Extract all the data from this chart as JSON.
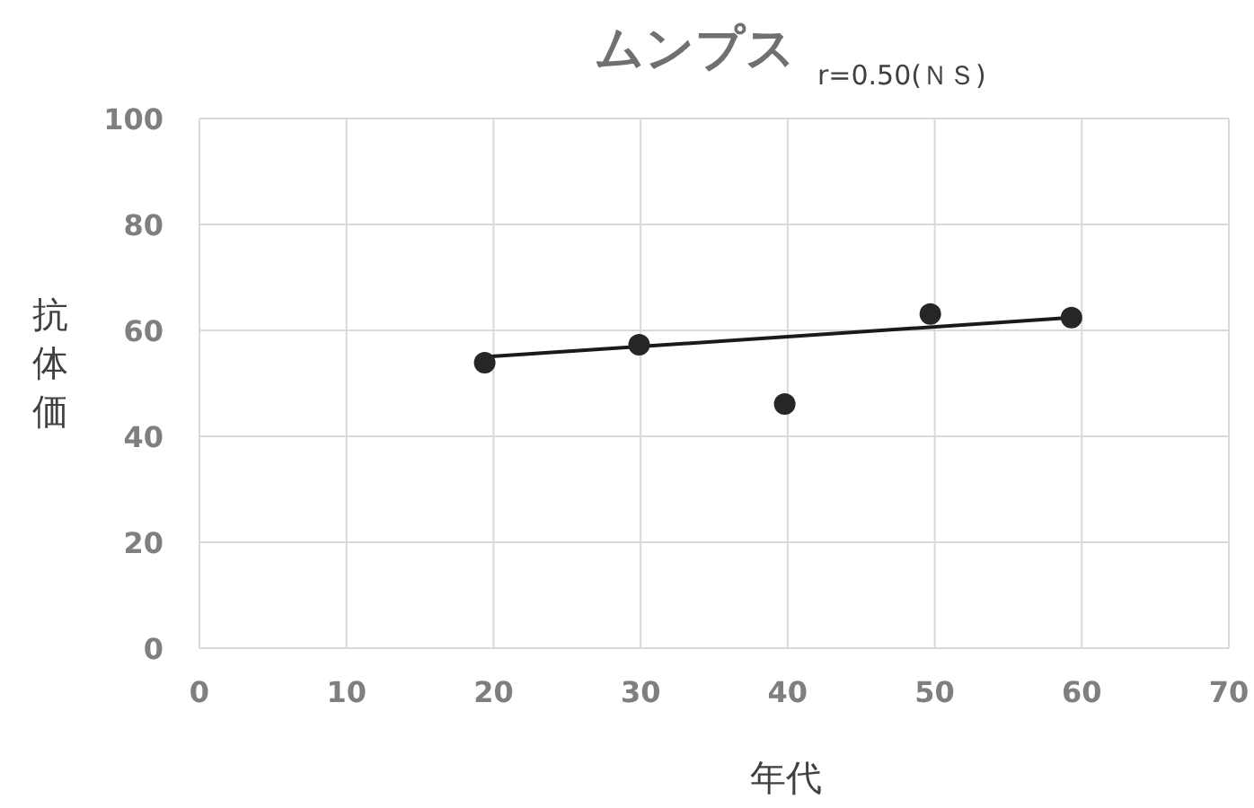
{
  "chart_data": {
    "type": "scatter",
    "title": "ムンプス",
    "subtitle": "r=0.50(ＮＳ)",
    "xlabel": "年代",
    "ylabel": "抗体価",
    "x": [
      19.4,
      29.9,
      39.8,
      49.7,
      59.3
    ],
    "series": [
      {
        "color": "#262626",
        "marker": "circle",
        "values": [
          53.9,
          57.3,
          46.1,
          63.1,
          62.4
        ]
      },
      {
        "type": "line",
        "marker": "none",
        "color": "#1a1a1a",
        "x": [
          19.4,
          59.3
        ],
        "values": [
          55.0,
          62.4
        ]
      }
    ],
    "xlim": [
      0,
      70
    ],
    "xticks": [
      0,
      10,
      20,
      30,
      40,
      50,
      60,
      70
    ],
    "ylim": [
      0,
      100
    ],
    "yticks": [
      0,
      20,
      40,
      60,
      80,
      100
    ],
    "grid": true,
    "line_style": "solid"
  }
}
